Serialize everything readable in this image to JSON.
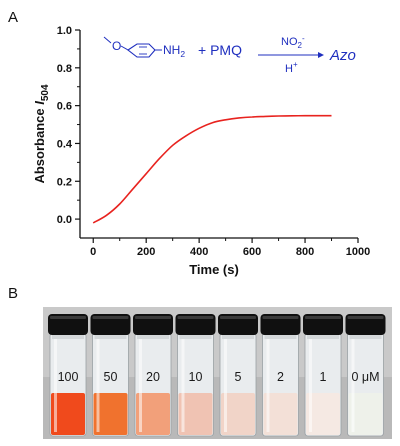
{
  "panel_a_label": "A",
  "panel_b_label": "B",
  "scheme": {
    "substituent": "O",
    "amine": "NH",
    "amine_sub": "2",
    "plus": "+ PMQ",
    "reagent": "NO",
    "reagent_sub": "2",
    "reagent_sup": "-",
    "acid": "H",
    "acid_sup": "+",
    "product": "Azo",
    "color": "#1f2fbf"
  },
  "chart_data": {
    "type": "line",
    "xlabel": "Time (s)",
    "ylabel_main": "Absorbance ",
    "ylabel_italic": "I",
    "ylabel_sub": "504",
    "xlim": [
      -50,
      1000
    ],
    "ylim": [
      -0.1,
      1.0
    ],
    "x_ticks": [
      0,
      200,
      400,
      600,
      800,
      1000
    ],
    "y_ticks": [
      0.0,
      0.2,
      0.4,
      0.6,
      0.8,
      1.0
    ],
    "y_tick_labels": [
      "0.0",
      "0.2",
      "0.4",
      "0.6",
      "0.8",
      "1.0"
    ],
    "x_tick_labels": [
      "0",
      "200",
      "400",
      "600",
      "800",
      "1000"
    ],
    "series": [
      {
        "color": "#e8231f",
        "x": [
          0,
          50,
          100,
          150,
          200,
          250,
          300,
          350,
          400,
          450,
          500,
          550,
          600,
          650,
          700,
          750,
          800,
          850,
          900
        ],
        "y": [
          -0.02,
          0.02,
          0.08,
          0.16,
          0.24,
          0.32,
          0.39,
          0.44,
          0.48,
          0.51,
          0.525,
          0.535,
          0.54,
          0.543,
          0.545,
          0.546,
          0.547,
          0.547,
          0.547
        ]
      }
    ],
    "grid": false
  },
  "vials": {
    "unit": "μM",
    "items": [
      {
        "label": "100",
        "liquid": "#f04a1c",
        "cap": "#101010"
      },
      {
        "label": "50",
        "liquid": "#f0722e",
        "cap": "#101010"
      },
      {
        "label": "20",
        "liquid": "#f2a07a",
        "cap": "#101010"
      },
      {
        "label": "10",
        "liquid": "#f0c3b3",
        "cap": "#101010"
      },
      {
        "label": "5",
        "liquid": "#f1d4c8",
        "cap": "#101010"
      },
      {
        "label": "2",
        "liquid": "#f3e0d7",
        "cap": "#101010"
      },
      {
        "label": "1",
        "liquid": "#f5e9e3",
        "cap": "#101010"
      },
      {
        "label": "0 μM",
        "liquid": "#eef1ea",
        "cap": "#101010"
      }
    ]
  }
}
